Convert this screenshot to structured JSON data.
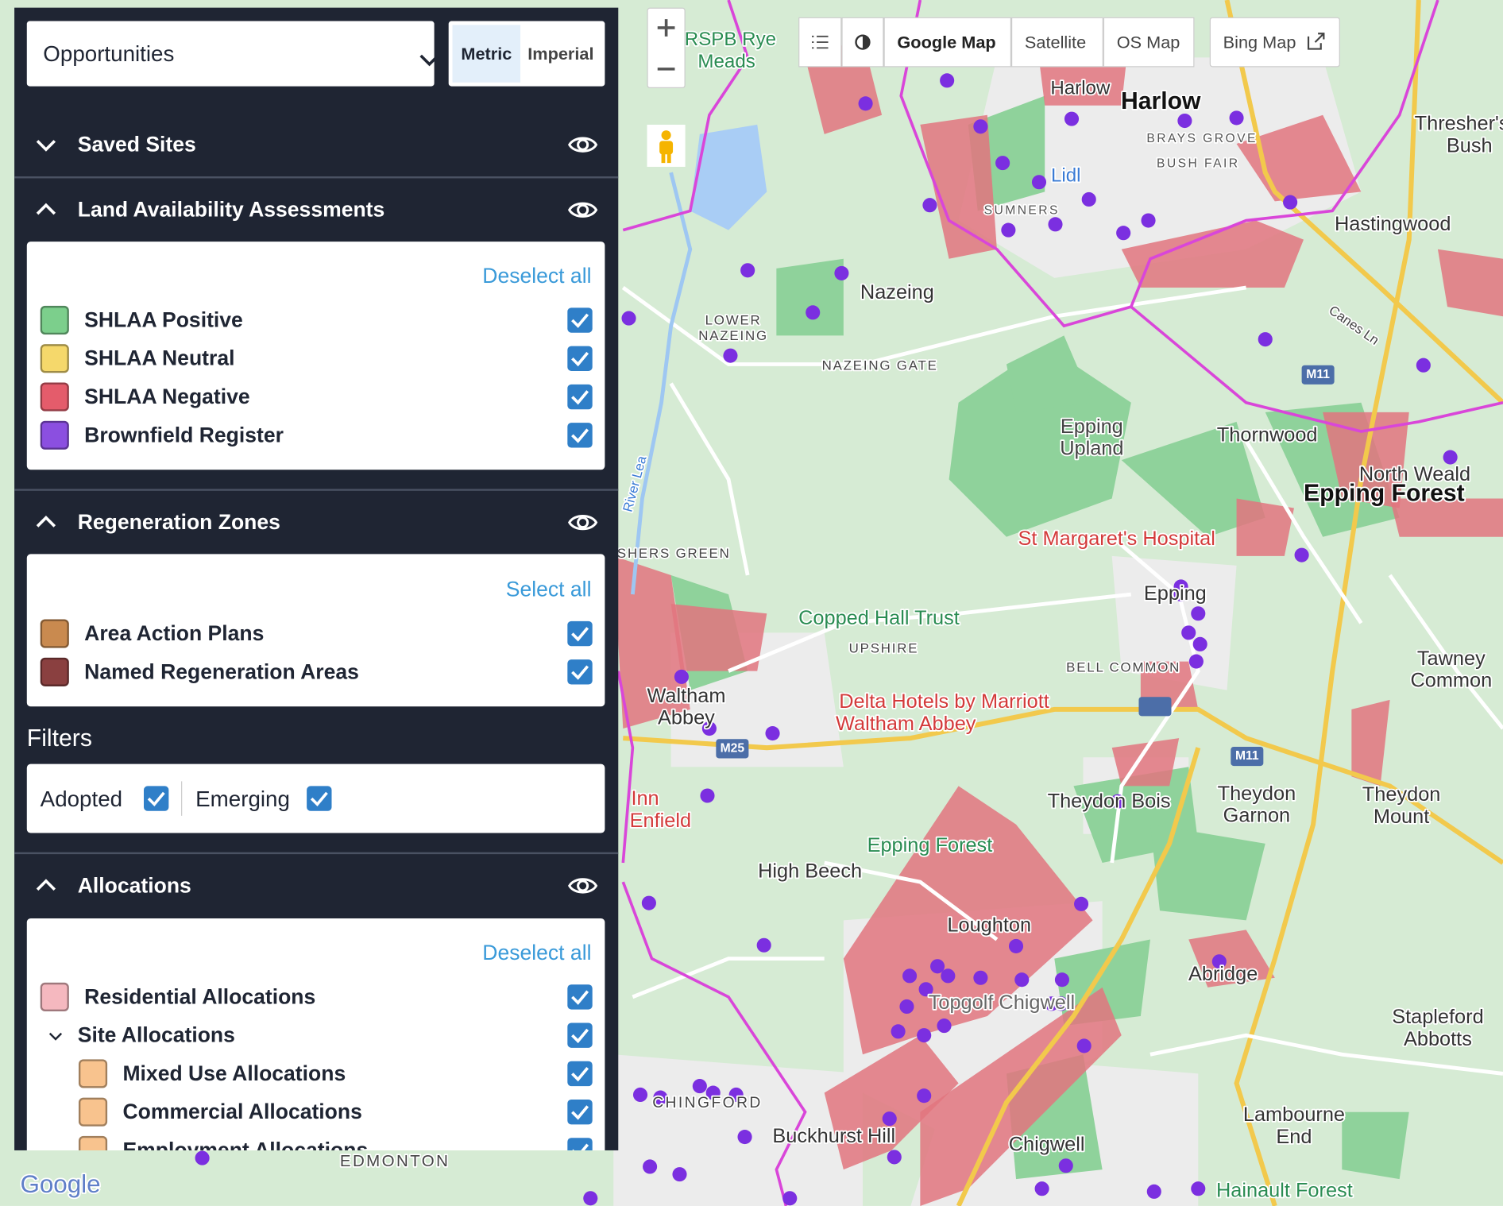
{
  "header": {
    "dropdown": "Opportunities",
    "units": [
      "Metric",
      "Imperial"
    ],
    "selected_unit_index": 0
  },
  "sections": [
    {
      "title": "Saved Sites",
      "expanded": false
    },
    {
      "title": "Land Availability Assessments",
      "expanded": true,
      "action": "Deselect all",
      "items": [
        {
          "label": "SHLAA Positive",
          "color": "#7ccf8c",
          "checked": true
        },
        {
          "label": "SHLAA Neutral",
          "color": "#f5d86b",
          "checked": true
        },
        {
          "label": "SHLAA Negative",
          "color": "#e45c6b",
          "checked": true
        },
        {
          "label": "Brownfield Register",
          "color": "#8b4fe0",
          "checked": true
        }
      ]
    },
    {
      "title": "Regeneration Zones",
      "expanded": true,
      "action": "Select all",
      "items": [
        {
          "label": "Area Action Plans",
          "color": "#c98a4f",
          "checked": true
        },
        {
          "label": "Named Regeneration Areas",
          "color": "#8a4040",
          "checked": true
        }
      ]
    }
  ],
  "filters": {
    "title": "Filters",
    "options": [
      {
        "label": "Adopted",
        "checked": true
      },
      {
        "label": "Emerging",
        "checked": true
      }
    ]
  },
  "allocations": {
    "title": "Allocations",
    "expanded": true,
    "action": "Deselect all",
    "items": [
      {
        "label": "Residential Allocations",
        "color": "#f5b8bf",
        "checked": true,
        "level": 0
      },
      {
        "label": "Site Allocations",
        "group": true,
        "checked": true,
        "level": 0
      },
      {
        "label": "Mixed Use Allocations",
        "color": "#f8c38e",
        "checked": true,
        "level": 1
      },
      {
        "label": "Commercial Allocations",
        "color": "#f8c38e",
        "checked": true,
        "level": 1
      },
      {
        "label": "Employment Allocations",
        "color": "#f8c38e",
        "checked": true,
        "level": 1
      }
    ]
  },
  "map_toolbar": {
    "buttons": [
      "Google Map",
      "Satellite",
      "OS Map",
      "Bing Map"
    ],
    "active_index": 0
  },
  "map_labels": [
    "Harlow",
    "Harlow",
    "RSPB Rye",
    "Meads",
    "Nazeing",
    "LOWER",
    "NAZEING",
    "NAZEING GATE",
    "Epping",
    "Upland",
    "Thornwood",
    "North Weald",
    "Epping Forest",
    "St Margaret's Hospital",
    "Epping",
    "Copped Hall Trust",
    "UPSHIRE",
    "BELL COMMON",
    "Tawney",
    "Common",
    "Waltham",
    "Abbey",
    "Delta Hotels by Marriott",
    "Waltham Abbey",
    "Inn",
    "Enfield",
    "Theydon Bois",
    "Theydon",
    "Garnon",
    "Theydon",
    "Mount",
    "Epping Forest",
    "High Beech",
    "Loughton",
    "Topgolf Chigwell",
    "Abridge",
    "Stapleford",
    "Abbotts",
    "CHINGFORD",
    "Buckhurst Hill",
    "Chigwell",
    "Lambourne",
    "End",
    "Hainault Forest",
    "EDMONTON",
    "Hastingwood",
    "Thresher's",
    "Bush",
    "BRAYS GROVE",
    "BUSH FAIR",
    "SUMNERS",
    "Lidl",
    "SHERS GREEN",
    "River Lea",
    "Canes Ln",
    "M11",
    "M11",
    "M25",
    "Google"
  ]
}
